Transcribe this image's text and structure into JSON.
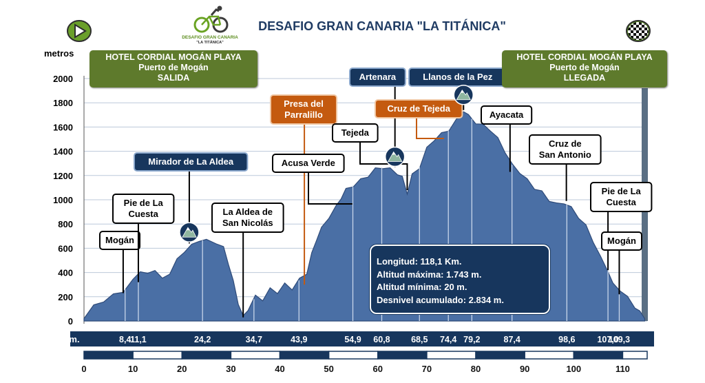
{
  "title": "DESAFIO GRAN CANARIA \"LA TITÁNICA\"",
  "logo": {
    "line1": "DESAFIO GRAN CANARIA",
    "line2": "\"LA TITÁNICA\""
  },
  "icons": {
    "start": "play-icon",
    "finish": "checkered-flag-icon",
    "peak": "mountain-peak-icon"
  },
  "start_box": {
    "line1": "HOTEL  CORDIAL MOGÁN PLAYA",
    "line2": "Puerto de Mogán",
    "line3": "SALIDA"
  },
  "finish_box": {
    "line1": "HOTEL CORDIAL MOGÁN PLAYA",
    "line2": "Puerto de Mogán",
    "line3": "LLEGADA"
  },
  "stats": {
    "length": "Longitud: 118,1 Km.",
    "max_alt": "Altitud máxima: 1.743 m.",
    "min_alt": "Altitud mínima: 20 m.",
    "climb": "Desnivel  acumulado: 2.834 m."
  },
  "colors": {
    "profile": "#4a6fa5",
    "dark_navy": "#17365d",
    "label_blue": "#1f3b63",
    "orange": "#c45a0f",
    "green_box": "#5e7a2c",
    "grid": "#bcc8da"
  },
  "chart_data": {
    "type": "area",
    "title": "DESAFIO GRAN CANARIA \"LA TITÁNICA\"",
    "ylabel": "metros",
    "xlabel": "",
    "xlim": [
      0,
      115
    ],
    "ylim": [
      0,
      2000
    ],
    "yticks": [
      "0",
      "200",
      "400",
      "600",
      "800",
      "1000",
      "1200",
      "1400",
      "1600",
      "1800",
      "2000"
    ],
    "xticks": [
      "0",
      "10",
      "20",
      "30",
      "40",
      "50",
      "60",
      "70",
      "80",
      "90",
      "100",
      "110"
    ],
    "grid": true,
    "km_row_label": "Km.",
    "km_markers": [
      {
        "km": 8.4,
        "label": "8,4"
      },
      {
        "km": 11.1,
        "label": "11,1"
      },
      {
        "km": 24.2,
        "label": "24,2"
      },
      {
        "km": 34.7,
        "label": "34,7"
      },
      {
        "km": 43.9,
        "label": "43,9"
      },
      {
        "km": 54.9,
        "label": "54,9"
      },
      {
        "km": 60.8,
        "label": "60,8"
      },
      {
        "km": 68.5,
        "label": "68,5"
      },
      {
        "km": 74.4,
        "label": "74,4"
      },
      {
        "km": 79.2,
        "label": "79,2"
      },
      {
        "km": 87.4,
        "label": "87,4"
      },
      {
        "km": 98.6,
        "label": "98,6"
      },
      {
        "km": 107.0,
        "label": "107,0"
      },
      {
        "km": 109.3,
        "label": "109,3"
      }
    ],
    "profile": [
      [
        0,
        20
      ],
      [
        2,
        120
      ],
      [
        4,
        170
      ],
      [
        6,
        210
      ],
      [
        8,
        250
      ],
      [
        10,
        330
      ],
      [
        11.5,
        420
      ],
      [
        13,
        380
      ],
      [
        14.5,
        430
      ],
      [
        16,
        340
      ],
      [
        17.5,
        400
      ],
      [
        19,
        500
      ],
      [
        20.5,
        580
      ],
      [
        22,
        620
      ],
      [
        23.5,
        670
      ],
      [
        25,
        660
      ],
      [
        27,
        650
      ],
      [
        28.5,
        600
      ],
      [
        29.5,
        480
      ],
      [
        30.5,
        320
      ],
      [
        31.5,
        150
      ],
      [
        32.5,
        30
      ],
      [
        33.5,
        100
      ],
      [
        35,
        200
      ],
      [
        36.5,
        180
      ],
      [
        38,
        260
      ],
      [
        39.5,
        240
      ],
      [
        41,
        300
      ],
      [
        42.5,
        270
      ],
      [
        44,
        340
      ],
      [
        45.5,
        400
      ],
      [
        46.5,
        550
      ],
      [
        47.5,
        680
      ],
      [
        48.5,
        760
      ],
      [
        50,
        860
      ],
      [
        51.5,
        940
      ],
      [
        52.5,
        1020
      ],
      [
        53.5,
        1080
      ],
      [
        55,
        1120
      ],
      [
        56.5,
        1160
      ],
      [
        58,
        1200
      ],
      [
        59.5,
        1250
      ],
      [
        61,
        1270
      ],
      [
        62.5,
        1250
      ],
      [
        64,
        1220
      ],
      [
        65,
        1180
      ],
      [
        66,
        1060
      ],
      [
        67,
        1200
      ],
      [
        68.5,
        1270
      ],
      [
        70,
        1420
      ],
      [
        71.5,
        1500
      ],
      [
        73,
        1540
      ],
      [
        74.5,
        1580
      ],
      [
        76,
        1650
      ],
      [
        77.5,
        1740
      ],
      [
        78.5,
        1690
      ],
      [
        80,
        1640
      ],
      [
        81.5,
        1610
      ],
      [
        83,
        1580
      ],
      [
        84.5,
        1500
      ],
      [
        86,
        1400
      ],
      [
        87.5,
        1280
      ],
      [
        89,
        1230
      ],
      [
        90.5,
        1160
      ],
      [
        92,
        1100
      ],
      [
        93.5,
        1060
      ],
      [
        95,
        1000
      ],
      [
        96.5,
        960
      ],
      [
        98,
        980
      ],
      [
        99.5,
        930
      ],
      [
        101,
        860
      ],
      [
        102.5,
        780
      ],
      [
        104,
        660
      ],
      [
        105.5,
        520
      ],
      [
        107,
        420
      ],
      [
        108,
        300
      ],
      [
        109.5,
        260
      ],
      [
        111,
        190
      ],
      [
        112.5,
        120
      ],
      [
        113.5,
        70
      ],
      [
        114.5,
        20
      ]
    ],
    "annotations": [
      {
        "label": [
          "Mogán"
        ],
        "km": 8.0,
        "elev": 230,
        "style": "white"
      },
      {
        "label": [
          "Pie de La",
          "Cuesta"
        ],
        "km": 11.1,
        "elev": 320,
        "style": "white"
      },
      {
        "label": [
          "Mirador de La Aldea"
        ],
        "km": 21.5,
        "elev": 640,
        "style": "blue"
      },
      {
        "label": [
          "La Aldea de",
          "San Nicolás"
        ],
        "km": 32.5,
        "elev": 30,
        "style": "white"
      },
      {
        "label": [
          "Presa del",
          "Parralillo"
        ],
        "km": 45.0,
        "elev": 300,
        "style": "orange"
      },
      {
        "label": [
          "Acusa Verde"
        ],
        "km": 54.8,
        "elev": 960,
        "style": "white"
      },
      {
        "label": [
          "Tejeda"
        ],
        "km": 66.0,
        "elev": 1060,
        "style": "white"
      },
      {
        "label": [
          "Artenara"
        ],
        "km": 63.5,
        "elev": 1270,
        "style": "blue"
      },
      {
        "label": [
          "Cruz de Tejeda"
        ],
        "km": 73.5,
        "elev": 1540,
        "style": "orange"
      },
      {
        "label": [
          "Llanos de la Pez"
        ],
        "km": 77.5,
        "elev": 1740,
        "style": "blue"
      },
      {
        "label": [
          "Ayacata"
        ],
        "km": 87.0,
        "elev": 1230,
        "style": "white"
      },
      {
        "label": [
          "Cruz de",
          "San Antonio"
        ],
        "km": 98.5,
        "elev": 990,
        "style": "white"
      },
      {
        "label": [
          "Pie de La",
          "Cuesta"
        ],
        "km": 107.0,
        "elev": 420,
        "style": "white"
      },
      {
        "label": [
          "Mogán"
        ],
        "km": 109.3,
        "elev": 220,
        "style": "white"
      }
    ],
    "peaks_km": [
      21.5,
      63.5,
      77.5
    ]
  }
}
